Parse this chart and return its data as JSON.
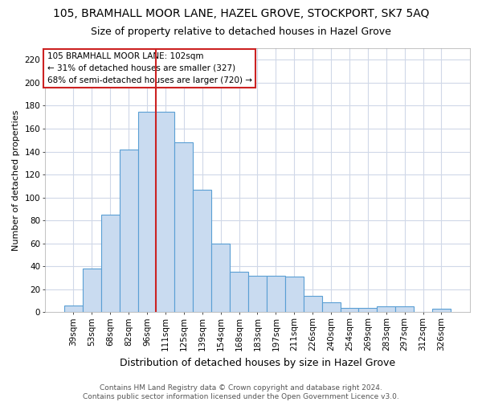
{
  "title": "105, BRAMHALL MOOR LANE, HAZEL GROVE, STOCKPORT, SK7 5AQ",
  "subtitle": "Size of property relative to detached houses in Hazel Grove",
  "xlabel": "Distribution of detached houses by size in Hazel Grove",
  "ylabel": "Number of detached properties",
  "categories": [
    "39sqm",
    "53sqm",
    "68sqm",
    "82sqm",
    "96sqm",
    "111sqm",
    "125sqm",
    "139sqm",
    "154sqm",
    "168sqm",
    "183sqm",
    "197sqm",
    "211sqm",
    "226sqm",
    "240sqm",
    "254sqm",
    "269sqm",
    "283sqm",
    "297sqm",
    "312sqm",
    "326sqm"
  ],
  "values": [
    6,
    38,
    85,
    142,
    175,
    175,
    148,
    107,
    60,
    35,
    32,
    32,
    31,
    14,
    9,
    4,
    4,
    5,
    5,
    0,
    3
  ],
  "bar_color": "#c9dbf0",
  "bar_edge_color": "#5a9fd4",
  "bar_width": 1.0,
  "vline_x": 4.5,
  "vline_color": "#cc2222",
  "ylim": [
    0,
    230
  ],
  "yticks": [
    0,
    20,
    40,
    60,
    80,
    100,
    120,
    140,
    160,
    180,
    200,
    220
  ],
  "annotation_text": "105 BRAMHALL MOOR LANE: 102sqm\n← 31% of detached houses are smaller (327)\n68% of semi-detached houses are larger (720) →",
  "annotation_box_color": "#ffffff",
  "annotation_box_edge_color": "#cc2222",
  "footer": "Contains HM Land Registry data © Crown copyright and database right 2024.\nContains public sector information licensed under the Open Government Licence v3.0.",
  "plot_bg_color": "#ffffff",
  "fig_bg_color": "#ffffff",
  "grid_color": "#d0d8e8",
  "title_fontsize": 10,
  "subtitle_fontsize": 9,
  "xlabel_fontsize": 9,
  "ylabel_fontsize": 8,
  "tick_fontsize": 7.5,
  "footer_fontsize": 6.5
}
